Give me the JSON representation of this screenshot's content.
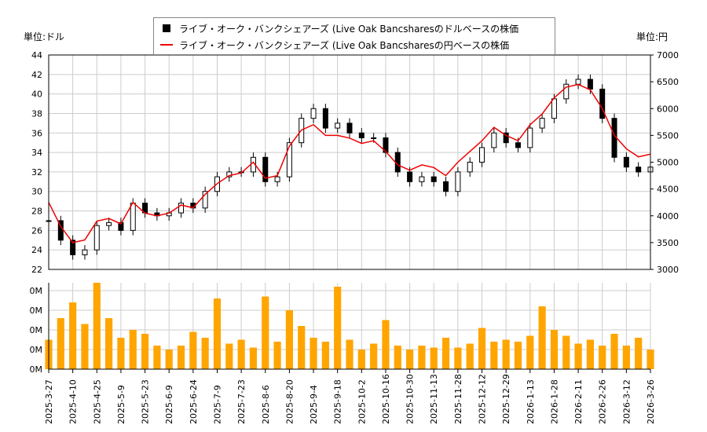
{
  "units": {
    "left": "単位:ドル",
    "right": "単位:円"
  },
  "legend": [
    {
      "label": "ライブ・オーク・バンクシェアーズ (Live Oak Bancsharesのドルベースの株価",
      "color": "#000000"
    },
    {
      "label": "ライブ・オーク・バンクシェアーズ (Live Oak Bancsharesの円ベースの株価",
      "color": "#ee0000"
    }
  ],
  "chart_data": {
    "type": "candlestick+line+bar",
    "x_tick_labels": [
      "2025-3-27",
      "2025-4-10",
      "2025-4-25",
      "2025-5-9",
      "2025-5-23",
      "2025-6-9",
      "2025-6-24",
      "2025-7-9",
      "2025-7-23",
      "2025-8-6",
      "2025-8-20",
      "2025-9-4",
      "2025-9-18",
      "2025-10-2",
      "2025-10-16",
      "2025-10-30",
      "2025-11-13",
      "2025-11-28",
      "2025-12-12",
      "2025-12-29",
      "2026-1-13",
      "2026-1-28",
      "2026-2-11",
      "2026-2-26",
      "2026-3-12",
      "2026-3-26"
    ],
    "left_axis": {
      "ticks": [
        22,
        24,
        26,
        28,
        30,
        32,
        34,
        36,
        38,
        40,
        42,
        44
      ],
      "ylim": [
        22,
        44
      ]
    },
    "right_axis": {
      "ticks": [
        3000,
        3500,
        4000,
        4500,
        5000,
        5500,
        6000,
        6500,
        7000
      ],
      "ylim": [
        3000,
        7000
      ]
    },
    "volume_axis": {
      "tick_labels": [
        "0M",
        "0M",
        "0M",
        "0M",
        "0M"
      ],
      "ylim": [
        0,
        4.4
      ]
    },
    "grid": true,
    "usd_close": [
      27,
      25,
      23.5,
      24,
      26.5,
      26.8,
      26,
      28.8,
      27.8,
      27.5,
      27.8,
      28.8,
      28.3,
      30,
      31.5,
      32,
      32,
      33.5,
      31,
      31.5,
      35,
      37.5,
      38.5,
      36.5,
      37,
      36,
      35.5,
      35.5,
      34,
      32,
      31,
      31.5,
      31,
      30,
      32,
      33,
      34.5,
      36,
      35,
      34.5,
      36.5,
      37.5,
      39.5,
      41,
      41.5,
      40.5,
      37.5,
      33.5,
      32.5,
      32,
      32.5
    ],
    "jpy_close": [
      4250,
      3800,
      3500,
      3550,
      3900,
      3950,
      3850,
      4250,
      4050,
      4000,
      4050,
      4200,
      4150,
      4400,
      4600,
      4750,
      4800,
      5000,
      4700,
      4750,
      5300,
      5600,
      5700,
      5500,
      5500,
      5450,
      5350,
      5400,
      5200,
      4950,
      4850,
      4950,
      4900,
      4750,
      5000,
      5200,
      5400,
      5650,
      5500,
      5400,
      5700,
      5900,
      6200,
      6400,
      6450,
      6350,
      6000,
      5500,
      5250,
      5100,
      5150
    ],
    "volume": [
      1.5,
      2.6,
      3.4,
      2.3,
      4.4,
      2.6,
      1.6,
      2.0,
      1.8,
      1.2,
      1.0,
      1.2,
      1.9,
      1.6,
      3.6,
      1.3,
      1.5,
      1.1,
      3.7,
      1.4,
      3.0,
      2.2,
      1.6,
      1.4,
      4.2,
      1.5,
      1.0,
      1.3,
      2.5,
      1.2,
      1.0,
      1.2,
      1.1,
      1.6,
      1.1,
      1.3,
      2.1,
      1.4,
      1.5,
      1.4,
      1.7,
      3.2,
      2.0,
      1.7,
      1.3,
      1.5,
      1.2,
      1.8,
      1.2,
      1.6,
      1.0
    ],
    "colors": {
      "candle": "#000000",
      "jpy_line": "#ee0000",
      "volume": "#ffa500",
      "grid": "#cccccc"
    }
  }
}
